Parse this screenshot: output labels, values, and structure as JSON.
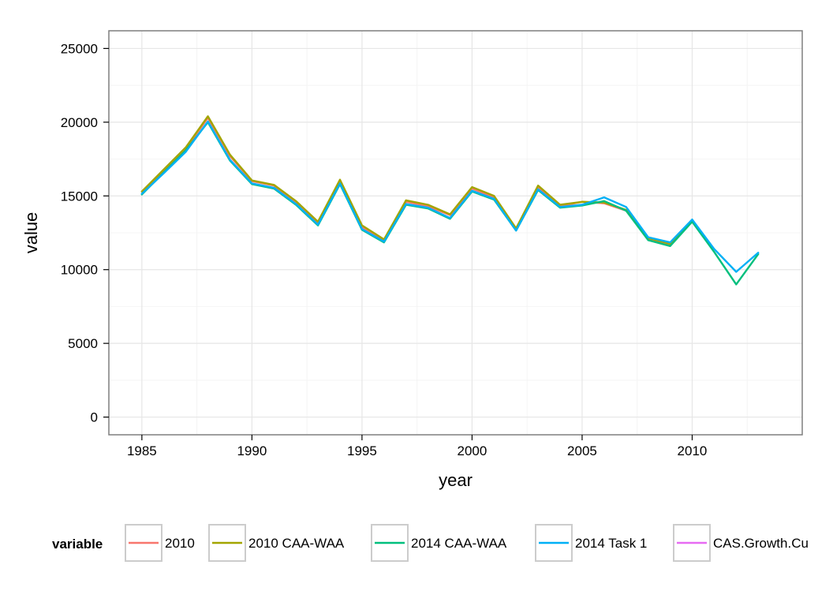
{
  "chart_data": {
    "type": "line",
    "title": "",
    "xlabel": "year",
    "ylabel": "value",
    "xlim": [
      1983.5,
      2015
    ],
    "ylim": [
      -1200,
      26200
    ],
    "x_ticks": [
      1985,
      1990,
      1995,
      2000,
      2005,
      2010
    ],
    "y_ticks": [
      0,
      5000,
      10000,
      15000,
      20000,
      25000
    ],
    "grid": true,
    "legend": {
      "title": "variable",
      "position": "bottom"
    },
    "series": [
      {
        "name": "2010",
        "color": "#F8766D",
        "x": [
          1985,
          1986,
          1987,
          1988,
          1989,
          1990,
          1991,
          1992,
          1993,
          1994,
          1995,
          1996,
          1997,
          1998,
          1999,
          2000,
          2001,
          2002,
          2003,
          2004,
          2005,
          2006,
          2007,
          2008,
          2009,
          2010
        ],
        "values": [
          15300,
          16700,
          18200,
          20300,
          17700,
          16000,
          15700,
          14600,
          13200,
          16000,
          12900,
          12000,
          14600,
          14300,
          13700,
          15500,
          14900,
          12700,
          15600,
          14300,
          14600,
          14500,
          14000,
          12100,
          11700,
          13300
        ]
      },
      {
        "name": "2010 CAA-WAA",
        "color": "#A3A500",
        "x": [
          1985,
          1986,
          1987,
          1988,
          1989,
          1990,
          1991,
          1992,
          1993,
          1994,
          1995,
          1996,
          1997,
          1998,
          1999,
          2000,
          2001,
          2002,
          2003,
          2004,
          2005,
          2006,
          2007,
          2008,
          2009,
          2010
        ],
        "values": [
          15300,
          16800,
          18300,
          20400,
          17800,
          16050,
          15750,
          14650,
          13250,
          16100,
          13000,
          12050,
          14700,
          14400,
          13750,
          15600,
          15000,
          12800,
          15700,
          14400,
          14600,
          14550,
          14050,
          12150,
          11750,
          13300
        ]
      },
      {
        "name": "2014 CAA-WAA",
        "color": "#00BF7D",
        "x": [
          1985,
          1986,
          1987,
          1988,
          1989,
          1990,
          1991,
          1992,
          1993,
          1994,
          1995,
          1996,
          1997,
          1998,
          1999,
          2000,
          2001,
          2002,
          2003,
          2004,
          2005,
          2006,
          2007,
          2008,
          2009,
          2010,
          2011,
          2012,
          2013
        ],
        "values": [
          15100,
          16600,
          18100,
          20000,
          17400,
          15800,
          15500,
          14400,
          13000,
          15800,
          12700,
          11850,
          14400,
          14150,
          13450,
          15300,
          14750,
          12650,
          15400,
          14200,
          14350,
          14650,
          14000,
          12000,
          11600,
          13250,
          11200,
          9000,
          11050
        ]
      },
      {
        "name": "2014 Task 1",
        "color": "#00B0F6",
        "x": [
          1985,
          1986,
          1987,
          1988,
          1989,
          1990,
          1991,
          1992,
          1993,
          1994,
          1995,
          1996,
          1997,
          1998,
          1999,
          2000,
          2001,
          2002,
          2003,
          2004,
          2005,
          2006,
          2007,
          2008,
          2009,
          2010,
          2011,
          2012,
          2013
        ],
        "values": [
          15150,
          16550,
          18000,
          20050,
          17450,
          15850,
          15550,
          14450,
          13050,
          15850,
          12750,
          11900,
          14450,
          14200,
          13500,
          15350,
          14800,
          12650,
          15450,
          14250,
          14400,
          14900,
          14250,
          12200,
          11850,
          13400,
          11400,
          9850,
          11150
        ]
      },
      {
        "name": "CAS.Growth.Cu",
        "color": "#E76BF3",
        "x": [],
        "values": []
      }
    ]
  }
}
